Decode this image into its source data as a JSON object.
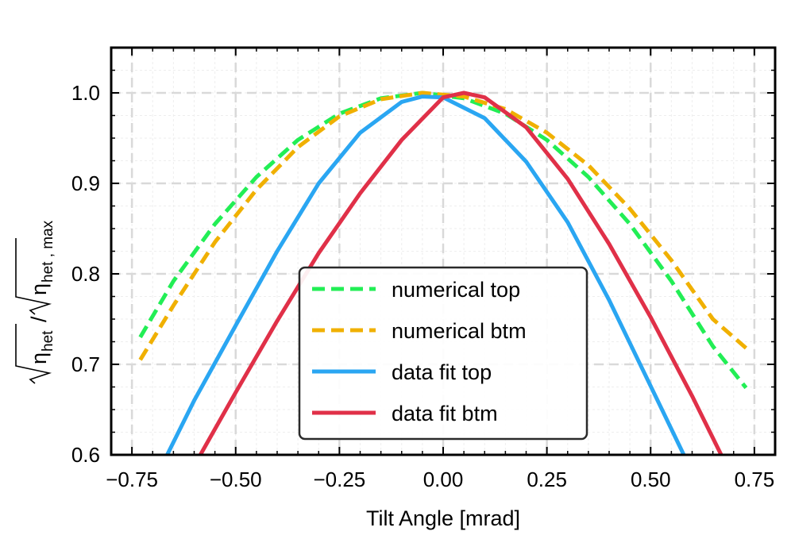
{
  "chart_data": {
    "type": "line",
    "title": "",
    "xlabel": "Tilt Angle [mrad]",
    "ylabel": {
      "base": "η",
      "num_sub": "het",
      "den_sub": "het , max",
      "separator": "/"
    },
    "xlim": [
      -0.8,
      0.8
    ],
    "ylim": [
      0.6,
      1.05
    ],
    "x_ticks": [
      -0.75,
      -0.5,
      -0.25,
      0.0,
      0.25,
      0.5,
      0.75
    ],
    "x_tick_labels": [
      "−0.75",
      "−0.50",
      "−0.25",
      "0.00",
      "0.25",
      "0.50",
      "0.75"
    ],
    "y_ticks": [
      0.6,
      0.7,
      0.8,
      0.9,
      1.0
    ],
    "y_tick_labels": [
      "0.6",
      "0.7",
      "0.8",
      "0.9",
      "1.0"
    ],
    "grid": true,
    "legend_position": "bottom-center",
    "series": [
      {
        "name": "numerical top",
        "color": "#22ee55",
        "style": "dashed",
        "x": [
          -0.73,
          -0.65,
          -0.55,
          -0.45,
          -0.35,
          -0.25,
          -0.15,
          -0.05,
          0.05,
          0.15,
          0.25,
          0.35,
          0.45,
          0.55,
          0.65,
          0.73
        ],
        "y": [
          0.73,
          0.792,
          0.855,
          0.907,
          0.948,
          0.977,
          0.994,
          1.0,
          0.994,
          0.977,
          0.948,
          0.907,
          0.855,
          0.792,
          0.72,
          0.674
        ]
      },
      {
        "name": "numerical btm",
        "color": "#f0b000",
        "style": "dashed",
        "x": [
          -0.73,
          -0.65,
          -0.55,
          -0.45,
          -0.35,
          -0.25,
          -0.15,
          -0.05,
          0.05,
          0.15,
          0.25,
          0.35,
          0.45,
          0.55,
          0.65,
          0.73
        ],
        "y": [
          0.705,
          0.765,
          0.835,
          0.893,
          0.94,
          0.974,
          0.993,
          1.0,
          0.996,
          0.982,
          0.956,
          0.92,
          0.872,
          0.815,
          0.75,
          0.718
        ]
      },
      {
        "name": "data fit top",
        "color": "#2aa6f2",
        "style": "solid",
        "x": [
          -0.665,
          -0.6,
          -0.5,
          -0.4,
          -0.3,
          -0.2,
          -0.1,
          -0.05,
          0.0,
          0.1,
          0.2,
          0.3,
          0.4,
          0.5,
          0.58
        ],
        "y": [
          0.6,
          0.66,
          0.743,
          0.825,
          0.9,
          0.956,
          0.99,
          0.996,
          0.995,
          0.972,
          0.924,
          0.857,
          0.771,
          0.676,
          0.6
        ]
      },
      {
        "name": "data fit btm",
        "color": "#e03048",
        "style": "solid",
        "x": [
          -0.585,
          -0.5,
          -0.4,
          -0.3,
          -0.2,
          -0.1,
          0.0,
          0.05,
          0.1,
          0.2,
          0.3,
          0.4,
          0.5,
          0.6,
          0.67
        ],
        "y": [
          0.6,
          0.669,
          0.748,
          0.823,
          0.889,
          0.948,
          0.995,
          1.0,
          0.995,
          0.962,
          0.905,
          0.833,
          0.752,
          0.665,
          0.6
        ]
      }
    ]
  }
}
